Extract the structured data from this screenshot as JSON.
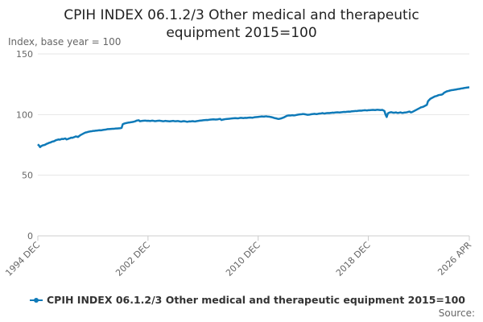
{
  "chart_data": {
    "type": "line",
    "title": "CPIH INDEX 06.1.2/3 Other medical and therapeutic equipment 2015=100",
    "y_label": "Index, base year = 100",
    "source": "Source:",
    "grid": true,
    "ylim": [
      0,
      150
    ],
    "yticks": [
      0,
      50,
      100,
      150
    ],
    "categories": [
      "1994 DEC",
      null,
      null,
      null,
      null,
      null,
      null,
      null,
      null,
      null,
      null,
      null,
      null,
      null,
      null,
      null,
      null,
      null,
      null,
      null,
      null,
      null,
      null,
      null,
      null,
      null,
      null,
      null,
      null,
      null,
      null,
      null,
      null,
      null,
      null,
      null,
      null,
      null,
      null,
      null,
      null,
      null,
      null,
      null,
      null,
      null,
      null,
      null,
      null,
      null,
      null,
      null,
      null,
      null,
      null,
      null,
      null,
      null,
      null,
      null,
      null,
      null,
      null,
      null,
      null,
      null,
      null,
      null,
      null,
      null,
      null,
      null,
      null,
      null,
      null,
      null,
      null,
      null,
      null,
      null,
      null,
      null,
      null,
      null,
      null,
      null,
      null,
      null,
      null,
      null,
      null,
      null,
      null,
      null,
      null,
      null,
      "2002 DEC",
      null,
      null,
      null,
      null,
      null,
      null,
      null,
      null,
      null,
      null,
      null,
      null,
      null,
      null,
      null,
      null,
      null,
      null,
      null,
      null,
      null,
      null,
      null,
      null,
      null,
      null,
      null,
      null,
      null,
      null,
      null,
      null,
      null,
      null,
      null,
      null,
      null,
      null,
      null,
      null,
      null,
      null,
      null,
      null,
      null,
      null,
      null,
      null,
      null,
      null,
      null,
      null,
      null,
      null,
      null,
      null,
      null,
      null,
      null,
      null,
      null,
      null,
      null,
      null,
      null,
      null,
      null,
      null,
      null,
      null,
      null,
      null,
      null,
      null,
      null,
      null,
      null,
      null,
      null,
      null,
      null,
      null,
      null,
      null,
      null,
      null,
      null,
      null,
      null,
      null,
      null,
      null,
      null,
      null,
      null,
      "2010 DEC",
      null,
      null,
      null,
      null,
      null,
      null,
      null,
      null,
      null,
      null,
      null,
      null,
      null,
      null,
      null,
      null,
      null,
      null,
      null,
      null,
      null,
      null,
      null,
      null,
      null,
      null,
      null,
      null,
      null,
      null,
      null,
      null,
      null,
      null,
      null,
      null,
      null,
      null,
      null,
      null,
      null,
      null,
      null,
      null,
      null,
      null,
      null,
      null,
      null,
      null,
      null,
      null,
      null,
      null,
      null,
      null,
      null,
      null,
      null,
      null,
      null,
      null,
      null,
      null,
      null,
      null,
      null,
      null,
      null,
      null,
      null,
      null,
      null,
      null,
      null,
      null,
      null,
      null,
      null,
      null,
      null,
      null,
      null,
      null,
      null,
      null,
      null,
      null,
      null,
      null,
      null,
      null,
      null,
      null,
      null,
      "2018 DEC",
      null,
      null,
      null,
      null,
      null,
      null,
      null,
      null,
      null,
      null,
      null,
      null,
      null,
      null,
      null,
      null,
      null,
      null,
      null,
      null,
      null,
      null,
      null,
      null,
      null,
      null,
      null,
      null,
      null,
      null,
      null,
      null,
      null,
      null,
      null,
      null,
      null,
      null,
      null,
      null,
      null,
      null,
      null,
      null,
      null,
      null,
      null,
      null,
      null,
      null,
      null,
      null,
      null,
      null,
      null,
      null,
      null,
      null,
      null,
      null,
      null,
      null,
      null,
      null,
      null,
      null,
      null,
      null,
      null,
      null,
      null,
      null,
      null,
      null,
      null,
      null,
      null,
      null,
      null,
      null,
      null,
      null,
      null,
      null,
      null,
      null,
      null,
      "2026 APR"
    ],
    "series": [
      {
        "name": "CPIH INDEX 06.1.2/3 Other medical and therapeutic equipment 2015=100",
        "color": "#0f7ab8",
        "values": [
          75.5,
          74.5,
          73.2,
          74,
          74.5,
          74.8,
          75,
          75.5,
          76,
          76.3,
          76.8,
          77,
          77.5,
          77.8,
          78,
          78.5,
          79,
          79.2,
          79.5,
          79.3,
          79.6,
          80,
          79.8,
          80.1,
          80.3,
          79.5,
          79.8,
          80.2,
          80.5,
          81,
          80.8,
          81.2,
          81.5,
          82,
          81.8,
          81.5,
          82.3,
          83,
          83.5,
          84,
          84.5,
          85,
          85.3,
          85.5,
          85.8,
          86,
          86.2,
          86.3,
          86.5,
          86.5,
          86.7,
          86.8,
          86.9,
          87,
          87.1,
          87,
          87.2,
          87.4,
          87.5,
          87.6,
          87.8,
          88,
          88,
          88.1,
          88.2,
          88.3,
          88.3,
          88.4,
          88.5,
          88.5,
          88.6,
          88.7,
          88.8,
          89,
          92,
          92.5,
          92.8,
          93,
          93.2,
          93.4,
          93.5,
          93.7,
          93.8,
          94,
          94.2,
          94.5,
          95,
          95.2,
          95.3,
          94.5,
          94.7,
          94.8,
          94.9,
          95,
          95,
          94.8,
          94.9,
          94.8,
          94.7,
          94.9,
          95,
          94.8,
          94.6,
          94.7,
          94.8,
          94.9,
          95,
          94.8,
          94.7,
          94.5,
          94.6,
          94.8,
          94.7,
          94.6,
          94.5,
          94.4,
          94.6,
          94.7,
          94.8,
          94.6,
          94.5,
          94.6,
          94.7,
          94.5,
          94.3,
          94.2,
          94.4,
          94.6,
          94.5,
          94.3,
          94.1,
          94.2,
          94.4,
          94.3,
          94.5,
          94.6,
          94.4,
          94.3,
          94.5,
          94.7,
          94.8,
          95,
          95.1,
          95.2,
          95.3,
          95.4,
          95.5,
          95.6,
          95.5,
          95.7,
          95.8,
          95.9,
          96,
          96.1,
          96,
          95.9,
          96,
          96.1,
          96.3,
          96.4,
          95.5,
          95.8,
          96,
          96.2,
          96.3,
          96.4,
          96.5,
          96.6,
          96.7,
          96.8,
          96.9,
          97,
          97.1,
          97,
          96.9,
          97,
          97.2,
          97.3,
          97.2,
          97.1,
          97.2,
          97.3,
          97.2,
          97.4,
          97.5,
          97.6,
          97.5,
          97.4,
          97.6,
          97.8,
          97.9,
          98,
          98.1,
          98.2,
          98.3,
          98.5,
          98.4,
          98.3,
          98.5,
          98.6,
          98.4,
          98.3,
          98.2,
          98,
          97.8,
          97.5,
          97.2,
          97,
          96.8,
          96.5,
          96.4,
          96.6,
          96.8,
          97.2,
          97.5,
          98,
          98.5,
          99,
          99.2,
          99.3,
          99.2,
          99.4,
          99.5,
          99.3,
          99.4,
          99.6,
          99.8,
          100,
          100.1,
          100.2,
          100.3,
          100.5,
          100.4,
          100.2,
          100,
          99.8,
          99.9,
          100,
          100.2,
          100.4,
          100.5,
          100.6,
          100.5,
          100.4,
          100.6,
          100.8,
          100.9,
          101,
          101.2,
          101,
          100.9,
          101.1,
          101.2,
          101.3,
          101.2,
          101.4,
          101.5,
          101.6,
          101.5,
          101.7,
          101.8,
          101.9,
          101.8,
          101.7,
          101.9,
          102,
          102.1,
          102.2,
          102.1,
          102.3,
          102.4,
          102.5,
          102.4,
          102.6,
          102.7,
          102.8,
          102.9,
          103,
          102.9,
          103.1,
          103.2,
          103.3,
          103.2,
          103.4,
          103.5,
          103.6,
          103.5,
          103.4,
          103.6,
          103.6,
          103.7,
          103.8,
          103.9,
          103.8,
          103.7,
          103.9,
          104,
          103.9,
          103.8,
          103.7,
          103.9,
          103.5,
          103,
          100,
          98,
          101,
          101.5,
          101.8,
          102,
          101.7,
          101.5,
          101.6,
          101.8,
          101.5,
          101.4,
          101.6,
          101.8,
          101.5,
          101.4,
          101.6,
          101.7,
          101.8,
          102,
          102.3,
          102.5,
          101.8,
          102,
          102.5,
          103,
          103.5,
          104,
          104.5,
          105,
          105.5,
          106,
          106.2,
          106.5,
          107,
          107.5,
          108,
          111,
          112,
          113,
          113.5,
          114,
          114.5,
          115,
          115.2,
          115.5,
          116,
          116.2,
          116.3,
          116.5,
          117,
          118,
          118.5,
          119,
          119.3,
          119.5,
          119.8,
          120,
          120.2,
          120.3,
          120.5,
          120.6,
          120.8,
          121,
          121.1,
          121.3,
          121.5,
          121.6,
          121.8,
          122,
          122.1,
          122.3,
          122.4,
          122.5
        ]
      }
    ]
  }
}
